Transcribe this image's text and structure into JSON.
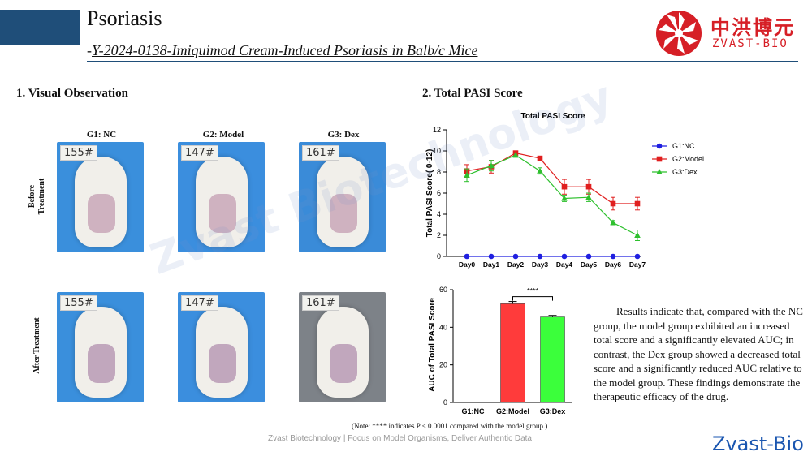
{
  "header": {
    "title": "Psoriasis",
    "subtitle_dash": "-",
    "subtitle": "Y-2024-0138-Imiquimod Cream-Induced Psoriasis in Balb/c Mice"
  },
  "logo": {
    "cn": "中洪博元",
    "en": "ZVAST-BIO",
    "color": "#d61f26"
  },
  "section1": {
    "heading": "1. Visual Observation",
    "columns": [
      "G1: NC",
      "G2: Model",
      "G3: Dex"
    ],
    "rows": [
      "Before Treatment",
      "After Treatment"
    ],
    "tags": [
      [
        "155#",
        "147#",
        "161#"
      ],
      [
        "155#",
        "147#",
        "161#"
      ]
    ]
  },
  "section2": {
    "heading": "2. Total PASI Score"
  },
  "chart_data": [
    {
      "type": "line",
      "title": "Total PASI Score",
      "ylabel": "Total PASI Score( 0-12)",
      "ylim": [
        0,
        12
      ],
      "yticks": [
        "0",
        "2",
        "4",
        "6",
        "8",
        "10",
        "12"
      ],
      "x": [
        "Day0",
        "Day1",
        "Day2",
        "Day3",
        "Day4",
        "Day5",
        "Day6",
        "Day7"
      ],
      "legend_position": "right",
      "series": [
        {
          "name": "G1:NC",
          "color": "#1f1fe0",
          "marker": "circle",
          "values": [
            0,
            0,
            0,
            0,
            0,
            0,
            0,
            0
          ],
          "errors": [
            0,
            0,
            0,
            0,
            0,
            0,
            0,
            0
          ]
        },
        {
          "name": "G2:Model",
          "color": "#e01f1f",
          "marker": "square",
          "values": [
            8.1,
            8.5,
            9.8,
            9.3,
            6.6,
            6.6,
            5.0,
            5.0
          ],
          "errors": [
            0.6,
            0.6,
            0.2,
            0.2,
            0.7,
            0.7,
            0.6,
            0.6
          ]
        },
        {
          "name": "G3:Dex",
          "color": "#2ec02e",
          "marker": "triangle",
          "values": [
            7.7,
            8.6,
            9.6,
            8.1,
            5.5,
            5.6,
            3.2,
            2.0
          ],
          "errors": [
            0.6,
            0.5,
            0.2,
            0.3,
            0.3,
            0.4,
            0.2,
            0.5
          ]
        }
      ]
    },
    {
      "type": "bar",
      "ylabel": "AUC of Total PASI Score",
      "ylim": [
        0,
        60
      ],
      "yticks": [
        "0",
        "20",
        "40",
        "60"
      ],
      "categories": [
        "G1:NC",
        "G2:Model",
        "G3:Dex"
      ],
      "values": [
        0,
        52.5,
        45.5
      ],
      "errors": [
        0,
        1.2,
        0.8
      ],
      "colors": [
        "#ff3b3b",
        "#ff3b3b",
        "#3bff3b"
      ],
      "significance": "****"
    }
  ],
  "note": "(Note: **** indicates P < 0.0001 compared with the model group.)",
  "summary": "Results indicate that, compared with the NC group, the model group exhibited an increased total score and a significantly elevated AUC; in contrast, the Dex group showed a decreased total score and a significantly reduced AUC relative to the model group. These findings demonstrate the therapeutic efficacy of the drug.",
  "footer": {
    "text": "Zvast Biotechnology | Focus on Model Organisms, Deliver Authentic Data",
    "brand": "Zvast-Bio",
    "watermark": "Zvast Biotechnology"
  }
}
